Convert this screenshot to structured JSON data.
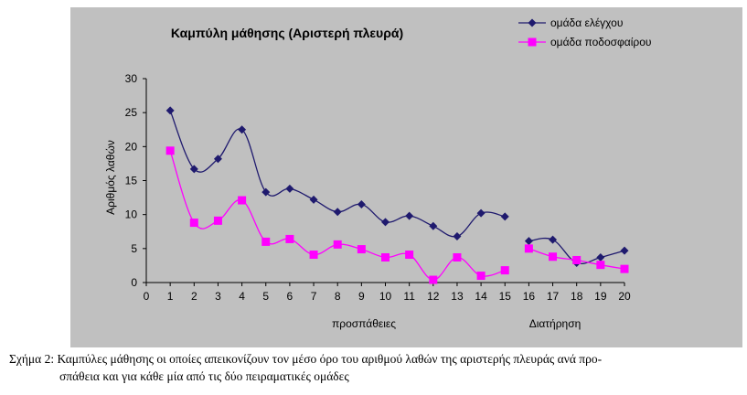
{
  "chart_data": {
    "type": "line",
    "title": "Καμπύλη μάθησης (Αριστερή πλευρά)",
    "ylabel": "Αριθμός λαθών",
    "xlabel": "προσπάθειες",
    "xlabel2": "Διατήρηση",
    "ylim": [
      0,
      30
    ],
    "xlim": [
      0,
      20
    ],
    "yticks": [
      "0",
      "5",
      "10",
      "15",
      "20",
      "25",
      "30"
    ],
    "xticks": [
      "0",
      "1",
      "2",
      "3",
      "4",
      "5",
      "6",
      "7",
      "8",
      "9",
      "10",
      "11",
      "12",
      "13",
      "14",
      "15",
      "16",
      "17",
      "18",
      "19",
      "20"
    ],
    "legend_position": "top-right",
    "series": [
      {
        "name": "ομάδα ελέγχου",
        "color": "#1f1a6e",
        "marker": "diamond",
        "segments": [
          {
            "x": [
              1,
              2,
              3,
              4,
              5,
              6,
              7,
              8,
              9,
              10,
              11,
              12,
              13,
              14,
              15
            ],
            "y": [
              25.3,
              16.7,
              18.2,
              22.5,
              13.3,
              13.8,
              12.2,
              10.4,
              11.5,
              8.9,
              9.8,
              8.3,
              6.8,
              10.2,
              9.7
            ]
          },
          {
            "x": [
              16,
              17,
              18,
              19,
              20
            ],
            "y": [
              6.1,
              6.3,
              2.9,
              3.7,
              4.7
            ]
          }
        ]
      },
      {
        "name": "ομάδα ποδοσφαίρου",
        "color": "#ff00ff",
        "marker": "square",
        "segments": [
          {
            "x": [
              1,
              2,
              3,
              4,
              5,
              6,
              7,
              8,
              9,
              10,
              11,
              12,
              13,
              14,
              15
            ],
            "y": [
              19.4,
              8.8,
              9.1,
              12.1,
              6.0,
              6.4,
              4.1,
              5.6,
              4.9,
              3.7,
              4.1,
              0.4,
              3.7,
              1.0,
              1.8
            ]
          },
          {
            "x": [
              16,
              17,
              18,
              19,
              20
            ],
            "y": [
              5.0,
              3.8,
              3.3,
              2.6,
              2.0
            ]
          }
        ]
      }
    ]
  },
  "caption": {
    "label": "Σχήμα 2:",
    "line1": "Καμπύλες μάθησης οι οποίες απεικονίζουν τον μέσο όρο του αριθμού λαθών της αριστερής πλευράς ανά προ-",
    "line2": "σπάθεια και για κάθε μία από τις δύο πειραματικές ομάδες"
  },
  "colors": {
    "background": "#c0c0c0",
    "axis": "#000000"
  }
}
